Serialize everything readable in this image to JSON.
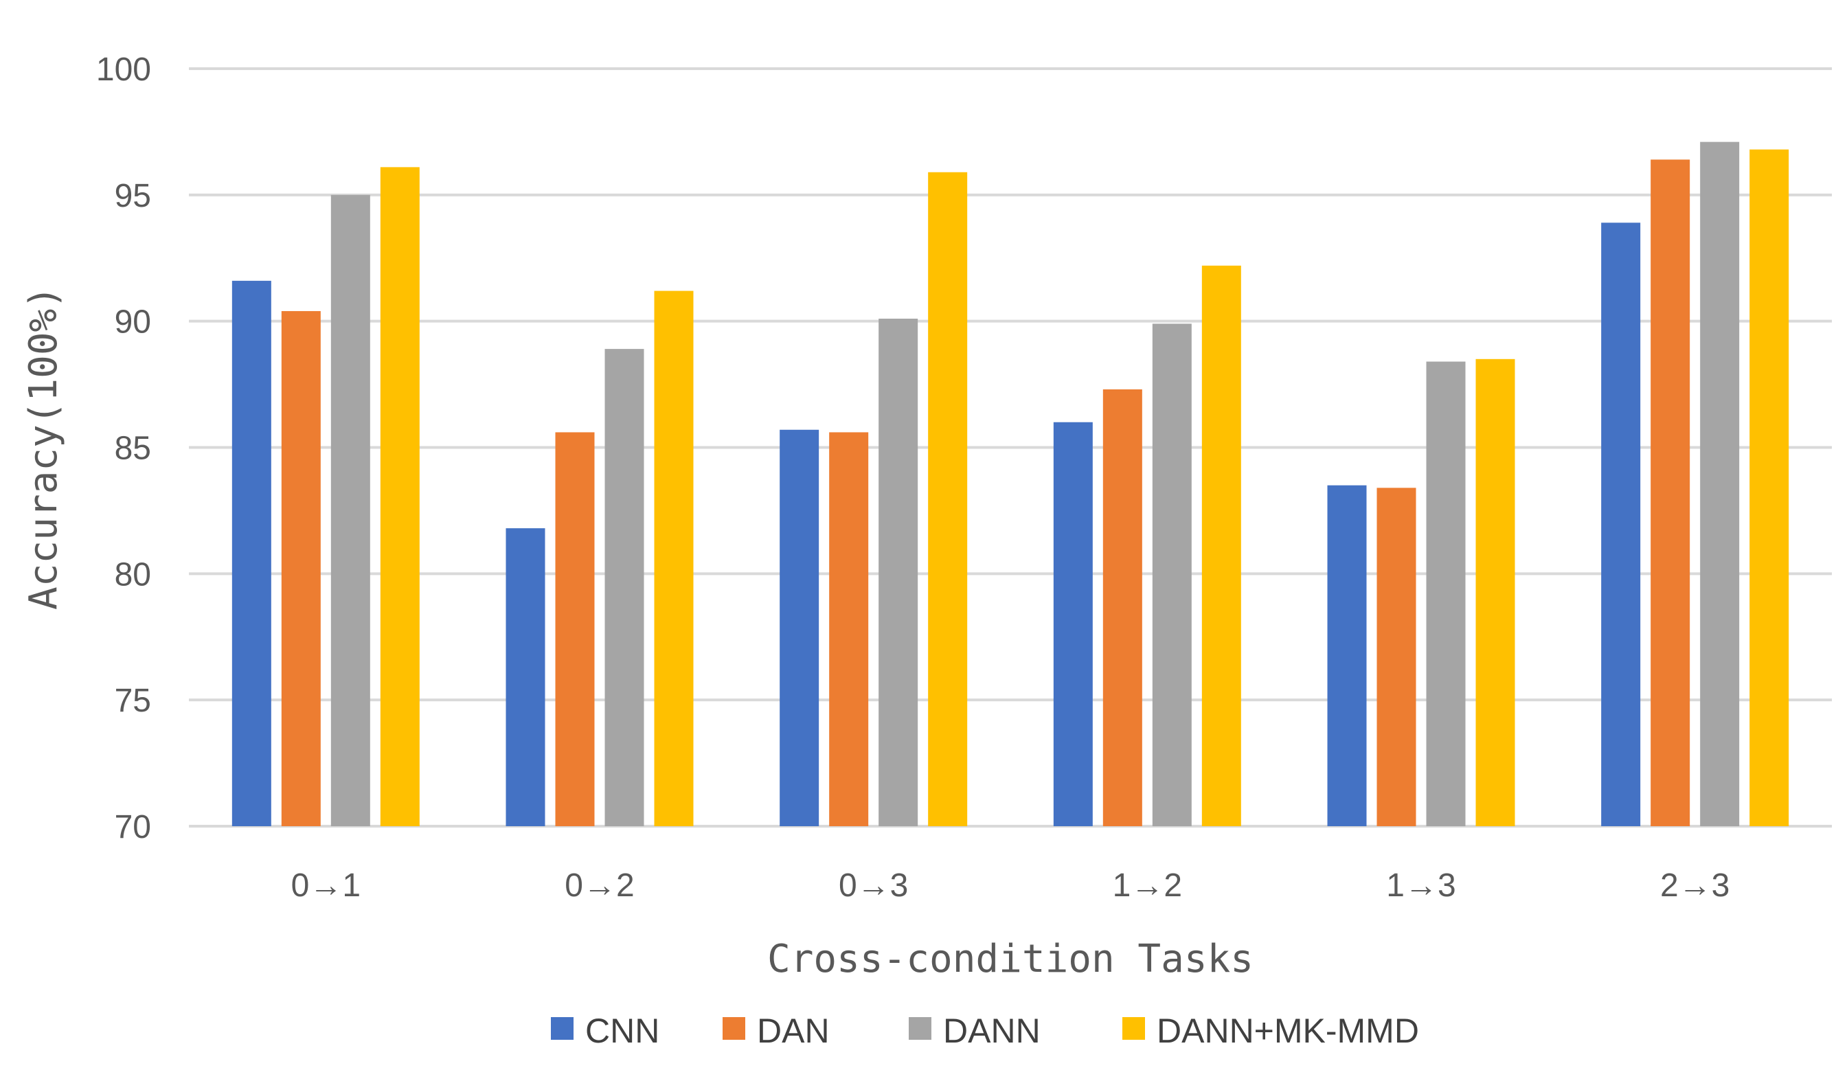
{
  "chart_data": {
    "type": "bar",
    "title": "",
    "xlabel": "Cross-condition Tasks",
    "ylabel": "Accuracy(100%)",
    "ylim": [
      70,
      100
    ],
    "yticks": [
      70,
      75,
      80,
      85,
      90,
      95,
      100
    ],
    "grid": true,
    "legend_position": "bottom",
    "categories": [
      "0→1",
      "0→2",
      "0→3",
      "1→2",
      "1→3",
      "2→3"
    ],
    "series": [
      {
        "name": "CNN",
        "color": "#4472C4",
        "values": [
          91.6,
          81.8,
          85.7,
          86.0,
          83.5,
          93.9
        ]
      },
      {
        "name": "DAN",
        "color": "#ED7D31",
        "values": [
          90.4,
          85.6,
          85.6,
          87.3,
          83.4,
          96.4
        ]
      },
      {
        "name": "DANN",
        "color": "#A5A5A5",
        "values": [
          95.0,
          88.9,
          90.1,
          89.9,
          88.4,
          97.1
        ]
      },
      {
        "name": "DANN+MK-MMD",
        "color": "#FFC000",
        "values": [
          96.1,
          91.2,
          95.9,
          92.2,
          88.5,
          96.8
        ]
      }
    ]
  }
}
